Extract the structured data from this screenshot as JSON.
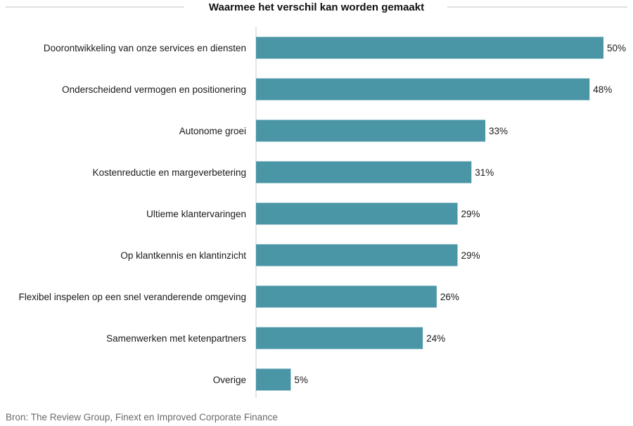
{
  "chart_data": {
    "type": "bar",
    "orientation": "horizontal",
    "title": "Waarmee het verschil kan worden gemaakt",
    "categories": [
      "Doorontwikkeling van onze services en diensten",
      "Onderscheidend vermogen en positionering",
      "Autonome groei",
      "Kostenreductie en margeverbetering",
      "Ultieme klantervaringen",
      "Op klantkennis en klantinzicht",
      "Flexibel inspelen op een snel veranderende omgeving",
      "Samenwerken met ketenpartners",
      "Overige"
    ],
    "values": [
      50,
      48,
      33,
      31,
      29,
      29,
      26,
      24,
      5
    ],
    "value_labels": [
      "50%",
      "48%",
      "33%",
      "31%",
      "29%",
      "29%",
      "26%",
      "24%",
      "5%"
    ],
    "xlim": [
      0,
      50
    ],
    "unit": "%",
    "xlabel": "",
    "ylabel": "",
    "grid": false,
    "legend": "none",
    "colors": {
      "bar": "#4a96a6",
      "title_rule": "#bfbfbf",
      "axis": "#cccccc",
      "text": "#1a1a1a",
      "source": "#6b6b6b"
    }
  },
  "source": "Bron: The Review Group, Finext en Improved Corporate Finance"
}
